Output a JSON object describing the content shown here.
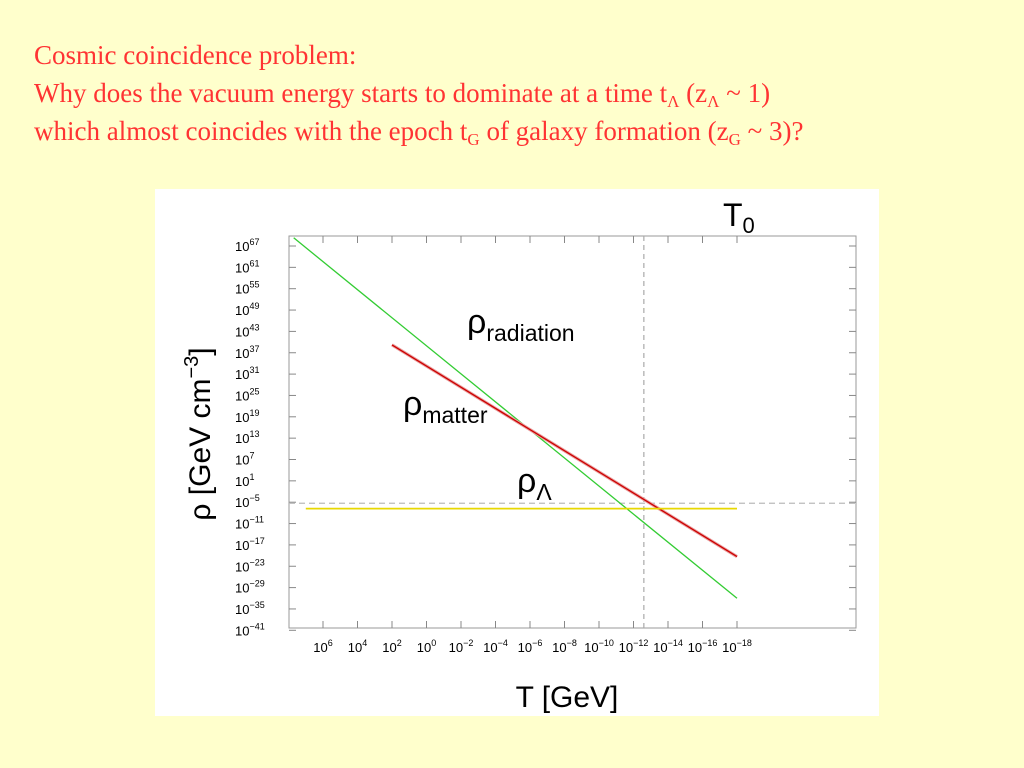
{
  "title": {
    "line1": "Cosmic coincidence problem:",
    "line2_a": "Why does the vacuum energy starts to dominate at a time t",
    "line2_sub1": "Λ",
    "line2_b": " (z",
    "line2_sub2": "Λ",
    "line2_c": " ~ 1)",
    "line3_a": "which almost coincides with the epoch t",
    "line3_sub1": "G",
    "line3_b": " of galaxy formation (z",
    "line3_sub2": "G",
    "line3_c": " ~ 3)?"
  },
  "colors": {
    "background": "#ffffcc",
    "title": "#ff3333",
    "radiation": "#33cc33",
    "matter": "#cc0000",
    "lambda": "#e8d800"
  },
  "chart_data": {
    "type": "line",
    "xlabel": "T [GeV]",
    "ylabel_base": "ρ [GeV cm",
    "ylabel_exp": "−3",
    "ylabel_close": "]",
    "x_scale": "log",
    "x_direction": "decreasing",
    "y_scale": "log",
    "x_ticks": [
      {
        "base": "10",
        "exp": "6"
      },
      {
        "base": "10",
        "exp": "4"
      },
      {
        "base": "10",
        "exp": "2"
      },
      {
        "base": "10",
        "exp": "0"
      },
      {
        "base": "10",
        "exp": "−2"
      },
      {
        "base": "10",
        "exp": "−4"
      },
      {
        "base": "10",
        "exp": "−6"
      },
      {
        "base": "10",
        "exp": "−8"
      },
      {
        "base": "10",
        "exp": "−10"
      },
      {
        "base": "10",
        "exp": "−12"
      },
      {
        "base": "10",
        "exp": "−14"
      },
      {
        "base": "10",
        "exp": "−16"
      },
      {
        "base": "10",
        "exp": "−18"
      }
    ],
    "y_ticks": [
      {
        "base": "10",
        "exp": "67"
      },
      {
        "base": "10",
        "exp": "61"
      },
      {
        "base": "10",
        "exp": "55"
      },
      {
        "base": "10",
        "exp": "49"
      },
      {
        "base": "10",
        "exp": "43"
      },
      {
        "base": "10",
        "exp": "37"
      },
      {
        "base": "10",
        "exp": "31"
      },
      {
        "base": "10",
        "exp": "25"
      },
      {
        "base": "10",
        "exp": "19"
      },
      {
        "base": "10",
        "exp": "13"
      },
      {
        "base": "10",
        "exp": "7"
      },
      {
        "base": "10",
        "exp": "1"
      },
      {
        "base": "10",
        "exp": "−5"
      },
      {
        "base": "10",
        "exp": "−11"
      },
      {
        "base": "10",
        "exp": "−17"
      },
      {
        "base": "10",
        "exp": "−23"
      },
      {
        "base": "10",
        "exp": "−29"
      },
      {
        "base": "10",
        "exp": "−35"
      },
      {
        "base": "10",
        "exp": "−41"
      }
    ],
    "log10_x_range": [
      7,
      -19
    ],
    "log10_y_range": [
      -44,
      71
    ],
    "series": [
      {
        "key": "radiation",
        "label_base": "ρ",
        "label_sub": "radiation",
        "log10_x": [
          7.7,
          -18.0
        ],
        "log10_y": [
          69.3,
          -32.0
        ]
      },
      {
        "key": "matter",
        "label_base": "ρ",
        "label_sub": "matter",
        "log10_x": [
          2.0,
          -18.0
        ],
        "log10_y": [
          39.2,
          -20.3
        ]
      },
      {
        "key": "lambda",
        "label_base": "ρ",
        "label_sub": "Λ",
        "log10_x": [
          7.0,
          -18.0
        ],
        "log10_y": [
          -6.8,
          -6.8
        ]
      }
    ],
    "vline": {
      "label_base": "T",
      "label_sub": "0",
      "log10_x": -12.6
    },
    "hline_dashed_log10_y": -5.3,
    "grid": false,
    "legend": "none"
  }
}
